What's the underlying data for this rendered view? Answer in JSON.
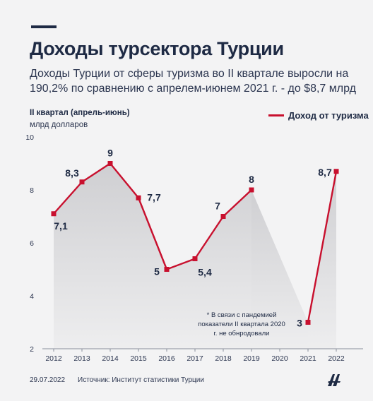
{
  "header": {
    "title": "Доходы турсектора Турции",
    "subtitle": "Доходы Турции от сферы туризма во II квартале выросли на 190,2% по сравнению с апрелем-июнем 2021 г. - до $8,7 млрд"
  },
  "units": {
    "period": "II квартал (апрель-июнь)",
    "currency": "млрд долларов"
  },
  "legend": {
    "label": "Доход от туризма",
    "color": "#c8102e"
  },
  "note": "* В связи с пандемией показатели II квартала 2020 г. не обнродовали",
  "footer": {
    "date": "29.07.2022",
    "source": "Источник: Институт статистики Турции",
    "logo": "aa-logo"
  },
  "colors": {
    "line": "#c8102e",
    "area": "#cfcfd2",
    "text": "#1e2a44"
  },
  "chart_data": {
    "type": "line",
    "categories": [
      "2012",
      "2013",
      "2014",
      "2015",
      "2016",
      "2017",
      "2018",
      "2019",
      "2020",
      "2021",
      "2022"
    ],
    "series": [
      {
        "name": "Доход от туризма",
        "values": [
          7.1,
          8.3,
          9,
          7.7,
          5,
          5.4,
          7,
          8,
          null,
          3,
          8.7
        ],
        "labels": [
          "7,1",
          "8,3",
          "9",
          "7,7",
          "5",
          "5,4",
          "7",
          "8",
          "",
          "3",
          "8,7"
        ]
      }
    ],
    "ylim": [
      2,
      10
    ],
    "yticks": [
      2,
      4,
      6,
      8,
      10
    ],
    "ytick_labels": [
      "2",
      "4",
      "6",
      "8",
      "10"
    ],
    "grid": false,
    "legend_position": "top-right"
  }
}
